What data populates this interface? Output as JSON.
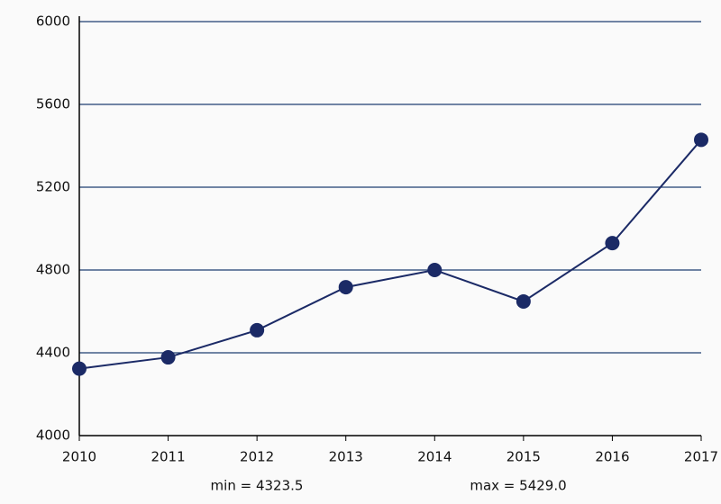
{
  "chart_data": {
    "type": "line",
    "x": [
      2010,
      2011,
      2012,
      2013,
      2014,
      2015,
      2016,
      2017
    ],
    "series": [
      {
        "color": "#1b2a66",
        "values": [
          4323.5,
          4378,
          4509,
          4717,
          4800,
          4648,
          4930,
          5429.0
        ]
      }
    ],
    "xlim": [
      2010,
      2017
    ],
    "xticks": [
      2010,
      2011,
      2012,
      2013,
      2014,
      2015,
      2016,
      2017
    ],
    "ylim": [
      4000,
      6000
    ],
    "yticks": [
      4000,
      4400,
      4800,
      5200,
      5600,
      6000
    ],
    "grid": true,
    "grid_color": "#1f3d70",
    "annotations": [
      "min = 4323.5",
      "max = 5429.0"
    ]
  }
}
